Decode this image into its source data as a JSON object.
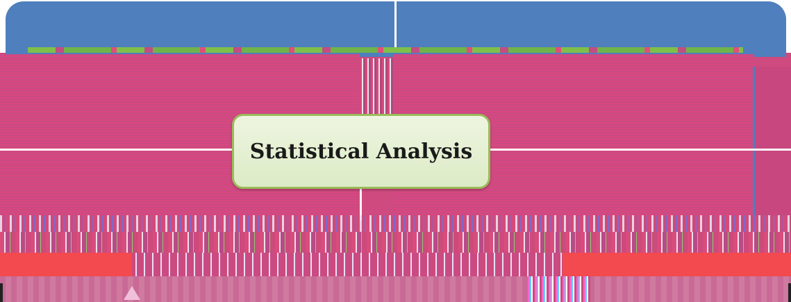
{
  "diagram": {
    "central_node": {
      "label": "Statistical Analysis"
    },
    "colors": {
      "banner": "#4f7fbd",
      "body": "#cf4a7e",
      "node_fill": "#dcebc6",
      "node_border": "#9bbb59",
      "connector": "#ffffff"
    }
  }
}
